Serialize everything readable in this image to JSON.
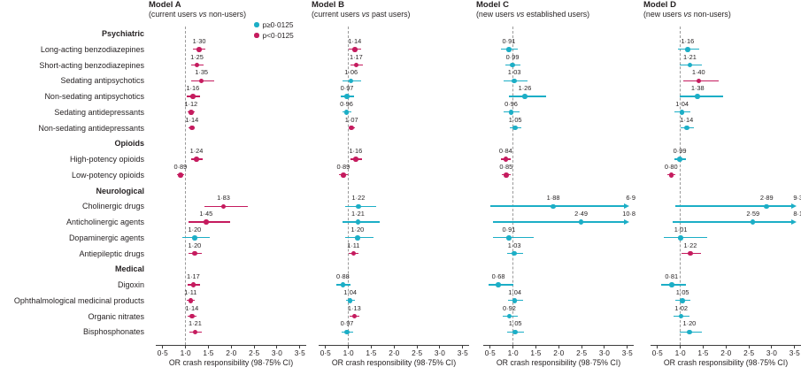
{
  "chart_data": {
    "type": "forest",
    "title": "",
    "xlabel": "OR crash responsibility (98·75% CI)",
    "xlim": [
      0.35,
      3.64
    ],
    "x_ticks": [
      0.5,
      1.0,
      1.5,
      2.0,
      2.5,
      3.0,
      3.5
    ],
    "x_tick_labels": [
      "0·5",
      "1·0",
      "1·5",
      "2·0",
      "2·5",
      "3·0",
      "3·5"
    ],
    "reference_line": 1.0,
    "grid": false,
    "colors": {
      "nonsignificant": "#1CAEC6",
      "significant": "#C51B5E",
      "reference_line": "#9a9a9a",
      "axis": "#3c3c3c"
    },
    "legend": {
      "position": "top-right of Model A panel",
      "entries": [
        {
          "name": "nonsignificant",
          "label": "p≥0·0125",
          "color": "#1CAEC6"
        },
        {
          "name": "significant",
          "label": "p<0·0125",
          "color": "#C51B5E"
        }
      ]
    },
    "rows": [
      {
        "type": "group",
        "label": "Psychiatric"
      },
      {
        "type": "item",
        "label": "Long-acting benzodiazepines"
      },
      {
        "type": "item",
        "label": "Short-acting benzodiazepines"
      },
      {
        "type": "item",
        "label": "Sedating antipsychotics"
      },
      {
        "type": "item",
        "label": "Non-sedating antipsychotics"
      },
      {
        "type": "item",
        "label": "Sedating antidepressants"
      },
      {
        "type": "item",
        "label": "Non-sedating antidepressants"
      },
      {
        "type": "group",
        "label": "Opioids"
      },
      {
        "type": "item",
        "label": "High-potency opioids"
      },
      {
        "type": "item",
        "label": "Low-potency opioids"
      },
      {
        "type": "group",
        "label": "Neurological"
      },
      {
        "type": "item",
        "label": "Cholinergic drugs"
      },
      {
        "type": "item",
        "label": "Anticholinergic agents"
      },
      {
        "type": "item",
        "label": "Dopaminergic agents"
      },
      {
        "type": "item",
        "label": "Antiepileptic drugs"
      },
      {
        "type": "group",
        "label": "Medical"
      },
      {
        "type": "item",
        "label": "Digoxin"
      },
      {
        "type": "item",
        "label": "Ophthalmological medicinal products"
      },
      {
        "type": "item",
        "label": "Organic nitrates"
      },
      {
        "type": "item",
        "label": "Bisphosphonates"
      }
    ],
    "panels": [
      {
        "title": "Model A",
        "subtitle": "(current users vs non-users)",
        "subtitle_parts": [
          "(current users ",
          "vs",
          " non-users)"
        ],
        "estimates": [
          {
            "drug": "Long-acting benzodiazepines",
            "or": 1.3,
            "ci": [
              1.17,
              1.44
            ],
            "label": "1·30",
            "significant": true
          },
          {
            "drug": "Short-acting benzodiazepines",
            "or": 1.25,
            "ci": [
              1.12,
              1.4
            ],
            "label": "1·25",
            "significant": true
          },
          {
            "drug": "Sedating antipsychotics",
            "or": 1.35,
            "ci": [
              1.13,
              1.62
            ],
            "label": "1·35",
            "significant": true
          },
          {
            "drug": "Non-sedating antipsychotics",
            "or": 1.16,
            "ci": [
              1.02,
              1.31
            ],
            "label": "1·16",
            "significant": true
          },
          {
            "drug": "Sedating antidepressants",
            "or": 1.12,
            "ci": [
              1.04,
              1.21
            ],
            "label": "1·12",
            "significant": true
          },
          {
            "drug": "Non-sedating antidepressants",
            "or": 1.14,
            "ci": [
              1.07,
              1.21
            ],
            "label": "1·14",
            "significant": true
          },
          {
            "drug": "High-potency opioids",
            "or": 1.24,
            "ci": [
              1.12,
              1.38
            ],
            "label": "1·24",
            "significant": true
          },
          {
            "drug": "Low-potency opioids",
            "or": 0.89,
            "ci": [
              0.81,
              0.97
            ],
            "label": "0·89",
            "significant": true
          },
          {
            "drug": "Cholinergic drugs",
            "or": 1.83,
            "ci": [
              1.42,
              2.36
            ],
            "label": "1·83",
            "significant": true
          },
          {
            "drug": "Anticholinergic agents",
            "or": 1.45,
            "ci": [
              1.06,
              1.98
            ],
            "label": "1·45",
            "significant": true
          },
          {
            "drug": "Dopaminergic agents",
            "or": 1.2,
            "ci": [
              0.94,
              1.53
            ],
            "label": "1·20",
            "significant": false
          },
          {
            "drug": "Antiepileptic drugs",
            "or": 1.2,
            "ci": [
              1.07,
              1.35
            ],
            "label": "1·20",
            "significant": true
          },
          {
            "drug": "Digoxin",
            "or": 1.17,
            "ci": [
              1.05,
              1.31
            ],
            "label": "1·17",
            "significant": true
          },
          {
            "drug": "Ophthalmological medicinal products",
            "or": 1.11,
            "ci": [
              1.03,
              1.2
            ],
            "label": "1·11",
            "significant": true
          },
          {
            "drug": "Organic nitrates",
            "or": 1.14,
            "ci": [
              1.04,
              1.25
            ],
            "label": "1·14",
            "significant": true
          },
          {
            "drug": "Bisphosphonates",
            "or": 1.21,
            "ci": [
              1.08,
              1.35
            ],
            "label": "1·21",
            "significant": true
          }
        ]
      },
      {
        "title": "Model B",
        "subtitle": "(current users vs past users)",
        "subtitle_parts": [
          "(current users ",
          "vs",
          " past users)"
        ],
        "estimates": [
          {
            "drug": "Long-acting benzodiazepines",
            "or": 1.14,
            "ci": [
              1.01,
              1.28
            ],
            "label": "1·14",
            "significant": true
          },
          {
            "drug": "Short-acting benzodiazepines",
            "or": 1.17,
            "ci": [
              1.04,
              1.31
            ],
            "label": "1·17",
            "significant": true
          },
          {
            "drug": "Sedating antipsychotics",
            "or": 1.06,
            "ci": [
              0.88,
              1.27
            ],
            "label": "1·06",
            "significant": false
          },
          {
            "drug": "Non-sedating antipsychotics",
            "or": 0.97,
            "ci": [
              0.83,
              1.13
            ],
            "label": "0·97",
            "significant": false
          },
          {
            "drug": "Sedating antidepressants",
            "or": 0.96,
            "ci": [
              0.87,
              1.06
            ],
            "label": "0·96",
            "significant": false
          },
          {
            "drug": "Non-sedating antidepressants",
            "or": 1.07,
            "ci": [
              1.0,
              1.15
            ],
            "label": "1·07",
            "significant": true
          },
          {
            "drug": "High-potency opioids",
            "or": 1.16,
            "ci": [
              1.04,
              1.3
            ],
            "label": "1·16",
            "significant": true
          },
          {
            "drug": "Low-potency opioids",
            "or": 0.89,
            "ci": [
              0.8,
              0.98
            ],
            "label": "0·89",
            "significant": true
          },
          {
            "drug": "Cholinergic drugs",
            "or": 1.22,
            "ci": [
              0.93,
              1.6
            ],
            "label": "1·22",
            "significant": false
          },
          {
            "drug": "Anticholinergic agents",
            "or": 1.21,
            "ci": [
              0.87,
              1.69
            ],
            "label": "1·21",
            "significant": false
          },
          {
            "drug": "Dopaminergic agents",
            "or": 1.2,
            "ci": [
              0.93,
              1.55
            ],
            "label": "1·20",
            "significant": false
          },
          {
            "drug": "Antiepileptic drugs",
            "or": 1.11,
            "ci": [
              1.0,
              1.23
            ],
            "label": "1·11",
            "significant": true
          },
          {
            "drug": "Digoxin",
            "or": 0.88,
            "ci": [
              0.74,
              1.05
            ],
            "label": "0·88",
            "significant": false
          },
          {
            "drug": "Ophthalmological medicinal products",
            "or": 1.04,
            "ci": [
              0.95,
              1.14
            ],
            "label": "1·04",
            "significant": false
          },
          {
            "drug": "Organic nitrates",
            "or": 1.13,
            "ci": [
              1.02,
              1.25
            ],
            "label": "1·13",
            "significant": true
          },
          {
            "drug": "Bisphosphonates",
            "or": 0.97,
            "ci": [
              0.86,
              1.1
            ],
            "label": "0·97",
            "significant": false
          }
        ]
      },
      {
        "title": "Model C",
        "subtitle": "(new users vs established users)",
        "subtitle_parts": [
          "(new users ",
          "vs",
          " established users)"
        ],
        "estimates": [
          {
            "drug": "Long-acting benzodiazepines",
            "or": 0.91,
            "ci": [
              0.74,
              1.11
            ],
            "label": "0·91",
            "significant": false
          },
          {
            "drug": "Short-acting benzodiazepines",
            "or": 0.99,
            "ci": [
              0.83,
              1.17
            ],
            "label": "0·99",
            "significant": false
          },
          {
            "drug": "Sedating antipsychotics",
            "or": 1.03,
            "ci": [
              0.8,
              1.32
            ],
            "label": "1·03",
            "significant": false
          },
          {
            "drug": "Non-sedating antipsychotics",
            "or": 1.26,
            "ci": [
              0.92,
              1.73
            ],
            "label": "1·26",
            "significant": false
          },
          {
            "drug": "Sedating antidepressants",
            "or": 0.96,
            "ci": [
              0.8,
              1.15
            ],
            "label": "0·96",
            "significant": false
          },
          {
            "drug": "Non-sedating antidepressants",
            "or": 1.05,
            "ci": [
              0.93,
              1.19
            ],
            "label": "1·05",
            "significant": false
          },
          {
            "drug": "High-potency opioids",
            "or": 0.84,
            "ci": [
              0.74,
              0.95
            ],
            "label": "0·84",
            "significant": true
          },
          {
            "drug": "Low-potency opioids",
            "or": 0.85,
            "ci": [
              0.76,
              0.95
            ],
            "label": "0·85",
            "significant": true
          },
          {
            "drug": "Cholinergic drugs",
            "or": 1.88,
            "ci": [
              0.51,
              6.9
            ],
            "label": "1·88",
            "significant": false,
            "arrow": true,
            "arrow_label": "6·9"
          },
          {
            "drug": "Anticholinergic agents",
            "or": 2.49,
            "ci": [
              0.57,
              10.8
            ],
            "label": "2·49",
            "significant": false,
            "arrow": true,
            "arrow_label": "10·8"
          },
          {
            "drug": "Dopaminergic agents",
            "or": 0.91,
            "ci": [
              0.57,
              1.45
            ],
            "label": "0·91",
            "significant": false
          },
          {
            "drug": "Antiepileptic drugs",
            "or": 1.03,
            "ci": [
              0.87,
              1.22
            ],
            "label": "1·03",
            "significant": false
          },
          {
            "drug": "Digoxin",
            "or": 0.68,
            "ci": [
              0.46,
              1.0
            ],
            "label": "0·68",
            "significant": false
          },
          {
            "drug": "Ophthalmological medicinal products",
            "or": 1.04,
            "ci": [
              0.89,
              1.22
            ],
            "label": "1·04",
            "significant": false
          },
          {
            "drug": "Organic nitrates",
            "or": 0.92,
            "ci": [
              0.77,
              1.1
            ],
            "label": "0·92",
            "significant": false
          },
          {
            "drug": "Bisphosphonates",
            "or": 1.05,
            "ci": [
              0.88,
              1.25
            ],
            "label": "1·05",
            "significant": false
          }
        ]
      },
      {
        "title": "Model D",
        "subtitle": "(new users vs non-users)",
        "subtitle_parts": [
          "(new users ",
          "vs",
          " non-users)"
        ],
        "estimates": [
          {
            "drug": "Long-acting benzodiazepines",
            "or": 1.16,
            "ci": [
              0.95,
              1.42
            ],
            "label": "1·16",
            "significant": false
          },
          {
            "drug": "Short-acting benzodiazepines",
            "or": 1.21,
            "ci": [
              0.99,
              1.48
            ],
            "label": "1·21",
            "significant": false
          },
          {
            "drug": "Sedating antipsychotics",
            "or": 1.4,
            "ci": [
              1.06,
              1.85
            ],
            "label": "1·40",
            "significant": true
          },
          {
            "drug": "Non-sedating antipsychotics",
            "or": 1.38,
            "ci": [
              0.99,
              1.93
            ],
            "label": "1·38",
            "significant": false
          },
          {
            "drug": "Sedating antidepressants",
            "or": 1.04,
            "ci": [
              0.88,
              1.23
            ],
            "label": "1·04",
            "significant": false
          },
          {
            "drug": "Non-sedating antidepressants",
            "or": 1.14,
            "ci": [
              1.0,
              1.3
            ],
            "label": "1·14",
            "significant": false
          },
          {
            "drug": "High-potency opioids",
            "or": 0.99,
            "ci": [
              0.87,
              1.13
            ],
            "label": "0·99",
            "significant": false
          },
          {
            "drug": "Low-potency opioids",
            "or": 0.8,
            "ci": [
              0.71,
              0.9
            ],
            "label": "0·80",
            "significant": true
          },
          {
            "drug": "Cholinergic drugs",
            "or": 2.89,
            "ci": [
              0.9,
              9.3
            ],
            "label": "2·89",
            "significant": false,
            "arrow": true,
            "arrow_label": "9·3"
          },
          {
            "drug": "Anticholinergic agents",
            "or": 2.59,
            "ci": [
              0.83,
              8.1
            ],
            "label": "2·59",
            "significant": false,
            "arrow": true,
            "arrow_label": "8·1"
          },
          {
            "drug": "Dopaminergic agents",
            "or": 1.01,
            "ci": [
              0.64,
              1.59
            ],
            "label": "1·01",
            "significant": false
          },
          {
            "drug": "Antiepileptic drugs",
            "or": 1.22,
            "ci": [
              1.02,
              1.46
            ],
            "label": "1·22",
            "significant": true
          },
          {
            "drug": "Digoxin",
            "or": 0.81,
            "ci": [
              0.58,
              1.13
            ],
            "label": "0·81",
            "significant": false
          },
          {
            "drug": "Ophthalmological medicinal products",
            "or": 1.05,
            "ci": [
              0.9,
              1.22
            ],
            "label": "1·05",
            "significant": false
          },
          {
            "drug": "Organic nitrates",
            "or": 1.02,
            "ci": [
              0.86,
              1.21
            ],
            "label": "1·02",
            "significant": false
          },
          {
            "drug": "Bisphosphonates",
            "or": 1.2,
            "ci": [
              0.98,
              1.47
            ],
            "label": "1·20",
            "significant": false
          }
        ]
      }
    ]
  }
}
